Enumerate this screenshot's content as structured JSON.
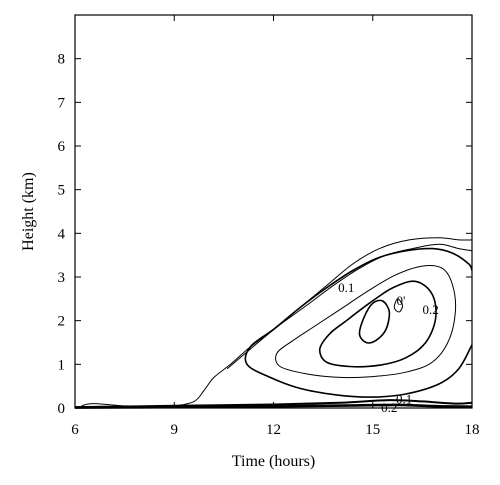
{
  "chart_data": {
    "type": "contour",
    "title": "",
    "xlabel": "Time (hours)",
    "ylabel": "Height (km)",
    "xlim": [
      6,
      18
    ],
    "ylim": [
      0,
      9
    ],
    "xticks": [
      6,
      9,
      12,
      15,
      18
    ],
    "yticks": [
      0,
      1,
      2,
      3,
      4,
      5,
      6,
      7,
      8
    ],
    "grid": false,
    "legend": "none",
    "contour_labels": [
      {
        "text": "0.1",
        "x": 14.2,
        "y": 2.75
      },
      {
        "text": "0'",
        "x": 15.85,
        "y": 2.45
      },
      {
        "text": "0.2",
        "x": 16.75,
        "y": 2.25
      },
      {
        "text": "0.1",
        "x": 15.95,
        "y": 0.2
      },
      {
        "text": "0.2",
        "x": 15.5,
        "y": 0.0
      }
    ],
    "contours": [
      {
        "stroke": 1.0,
        "closed": false,
        "points": [
          [
            6.2,
            0.05
          ],
          [
            6.6,
            0.1
          ],
          [
            8,
            0.02
          ],
          [
            9,
            0.05
          ],
          [
            9.6,
            0.15
          ],
          [
            9.9,
            0.4
          ],
          [
            10.2,
            0.7
          ],
          [
            10.7,
            1.0
          ],
          [
            11.3,
            1.4
          ],
          [
            12,
            1.8
          ],
          [
            12.8,
            2.3
          ],
          [
            13.6,
            2.8
          ],
          [
            14.4,
            3.3
          ],
          [
            15.2,
            3.65
          ],
          [
            16.1,
            3.85
          ],
          [
            17,
            3.9
          ],
          [
            17.6,
            3.85
          ],
          [
            18,
            3.85
          ]
        ]
      },
      {
        "stroke": 1.0,
        "closed": false,
        "points": [
          [
            10.6,
            0.9
          ],
          [
            11.3,
            1.35
          ],
          [
            12.1,
            1.85
          ],
          [
            13,
            2.35
          ],
          [
            13.8,
            2.8
          ],
          [
            14.6,
            3.2
          ],
          [
            15.4,
            3.5
          ],
          [
            16.2,
            3.65
          ],
          [
            17,
            3.75
          ],
          [
            17.6,
            3.65
          ],
          [
            18,
            3.6
          ]
        ]
      },
      {
        "stroke": 1.6,
        "closed": false,
        "points": [
          [
            18,
            1.45
          ],
          [
            17.6,
            0.9
          ],
          [
            17,
            0.55
          ],
          [
            16,
            0.32
          ],
          [
            15,
            0.25
          ],
          [
            13.9,
            0.3
          ],
          [
            12.8,
            0.45
          ],
          [
            11.9,
            0.7
          ],
          [
            11.2,
            1.0
          ],
          [
            11.3,
            1.4
          ],
          [
            12,
            1.8
          ],
          [
            12.8,
            2.3
          ],
          [
            13.6,
            2.75
          ],
          [
            14.4,
            3.15
          ],
          [
            15.2,
            3.45
          ],
          [
            16,
            3.6
          ],
          [
            16.8,
            3.65
          ],
          [
            17.4,
            3.55
          ],
          [
            17.9,
            3.3
          ],
          [
            18,
            3.15
          ]
        ]
      },
      {
        "stroke": 1.0,
        "closed": true,
        "points": [
          [
            12.1,
            1.25
          ],
          [
            12.2,
            0.95
          ],
          [
            13,
            0.78
          ],
          [
            14,
            0.7
          ],
          [
            15,
            0.72
          ],
          [
            16,
            0.82
          ],
          [
            16.8,
            1.05
          ],
          [
            17.3,
            1.55
          ],
          [
            17.5,
            2.25
          ],
          [
            17.4,
            2.85
          ],
          [
            17.1,
            3.2
          ],
          [
            16.5,
            3.25
          ],
          [
            15.7,
            3.05
          ],
          [
            14.9,
            2.7
          ],
          [
            14.1,
            2.3
          ],
          [
            13.3,
            1.9
          ],
          [
            12.6,
            1.55
          ]
        ]
      },
      {
        "stroke": 1.6,
        "closed": true,
        "points": [
          [
            13.4,
            1.35
          ],
          [
            13.6,
            1.05
          ],
          [
            14.3,
            0.95
          ],
          [
            15.2,
            0.98
          ],
          [
            16,
            1.15
          ],
          [
            16.6,
            1.5
          ],
          [
            16.9,
            2.05
          ],
          [
            16.8,
            2.6
          ],
          [
            16.3,
            2.9
          ],
          [
            15.6,
            2.75
          ],
          [
            14.9,
            2.4
          ],
          [
            14.2,
            2.0
          ],
          [
            13.7,
            1.7
          ]
        ]
      },
      {
        "stroke": 1.6,
        "closed": true,
        "points": [
          [
            14.6,
            1.7
          ],
          [
            14.8,
            1.5
          ],
          [
            15.1,
            1.55
          ],
          [
            15.4,
            1.8
          ],
          [
            15.5,
            2.2
          ],
          [
            15.3,
            2.45
          ],
          [
            15,
            2.4
          ],
          [
            14.75,
            2.1
          ]
        ]
      },
      {
        "stroke": 1.0,
        "closed": true,
        "points": [
          [
            15.65,
            2.3
          ],
          [
            15.8,
            2.2
          ],
          [
            15.9,
            2.35
          ],
          [
            15.75,
            2.5
          ]
        ]
      },
      {
        "stroke": 2.0,
        "closed": false,
        "points": [
          [
            6,
            0.02
          ],
          [
            9,
            0.05
          ],
          [
            12,
            0.08
          ],
          [
            14,
            0.12
          ],
          [
            15.5,
            0.18
          ],
          [
            16.5,
            0.15
          ],
          [
            17.5,
            0.1
          ],
          [
            18,
            0.12
          ]
        ]
      },
      {
        "stroke": 2.6,
        "closed": false,
        "points": [
          [
            6,
            0.01
          ],
          [
            9,
            0.02
          ],
          [
            12,
            0.04
          ],
          [
            14.5,
            0.06
          ],
          [
            15.8,
            0.07
          ],
          [
            17,
            0.04
          ],
          [
            18,
            0.03
          ]
        ]
      }
    ]
  }
}
